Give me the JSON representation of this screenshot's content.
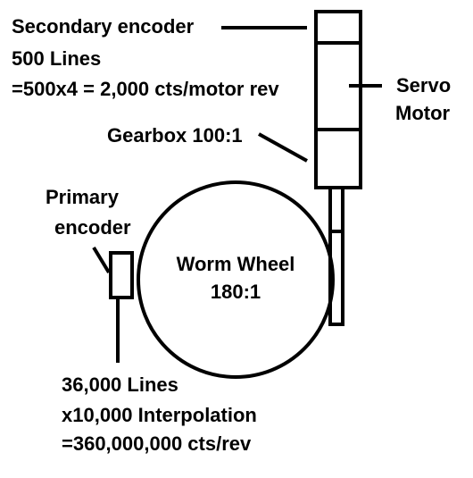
{
  "secondary_encoder": {
    "title": "Secondary encoder",
    "lines": "500 Lines",
    "counts": "=500x4 = 2,000 cts/motor rev"
  },
  "servo_motor": {
    "line1": "Servo",
    "line2": "Motor"
  },
  "gearbox": "Gearbox 100:1",
  "primary_encoder": {
    "line1": "Primary",
    "line2": "encoder"
  },
  "worm_wheel": {
    "line1": "Worm Wheel",
    "line2": "180:1"
  },
  "primary_specs": {
    "lines": "36,000 Lines",
    "interp": "x10,000 Interpolation",
    "counts": "=360,000,000 cts/rev"
  }
}
